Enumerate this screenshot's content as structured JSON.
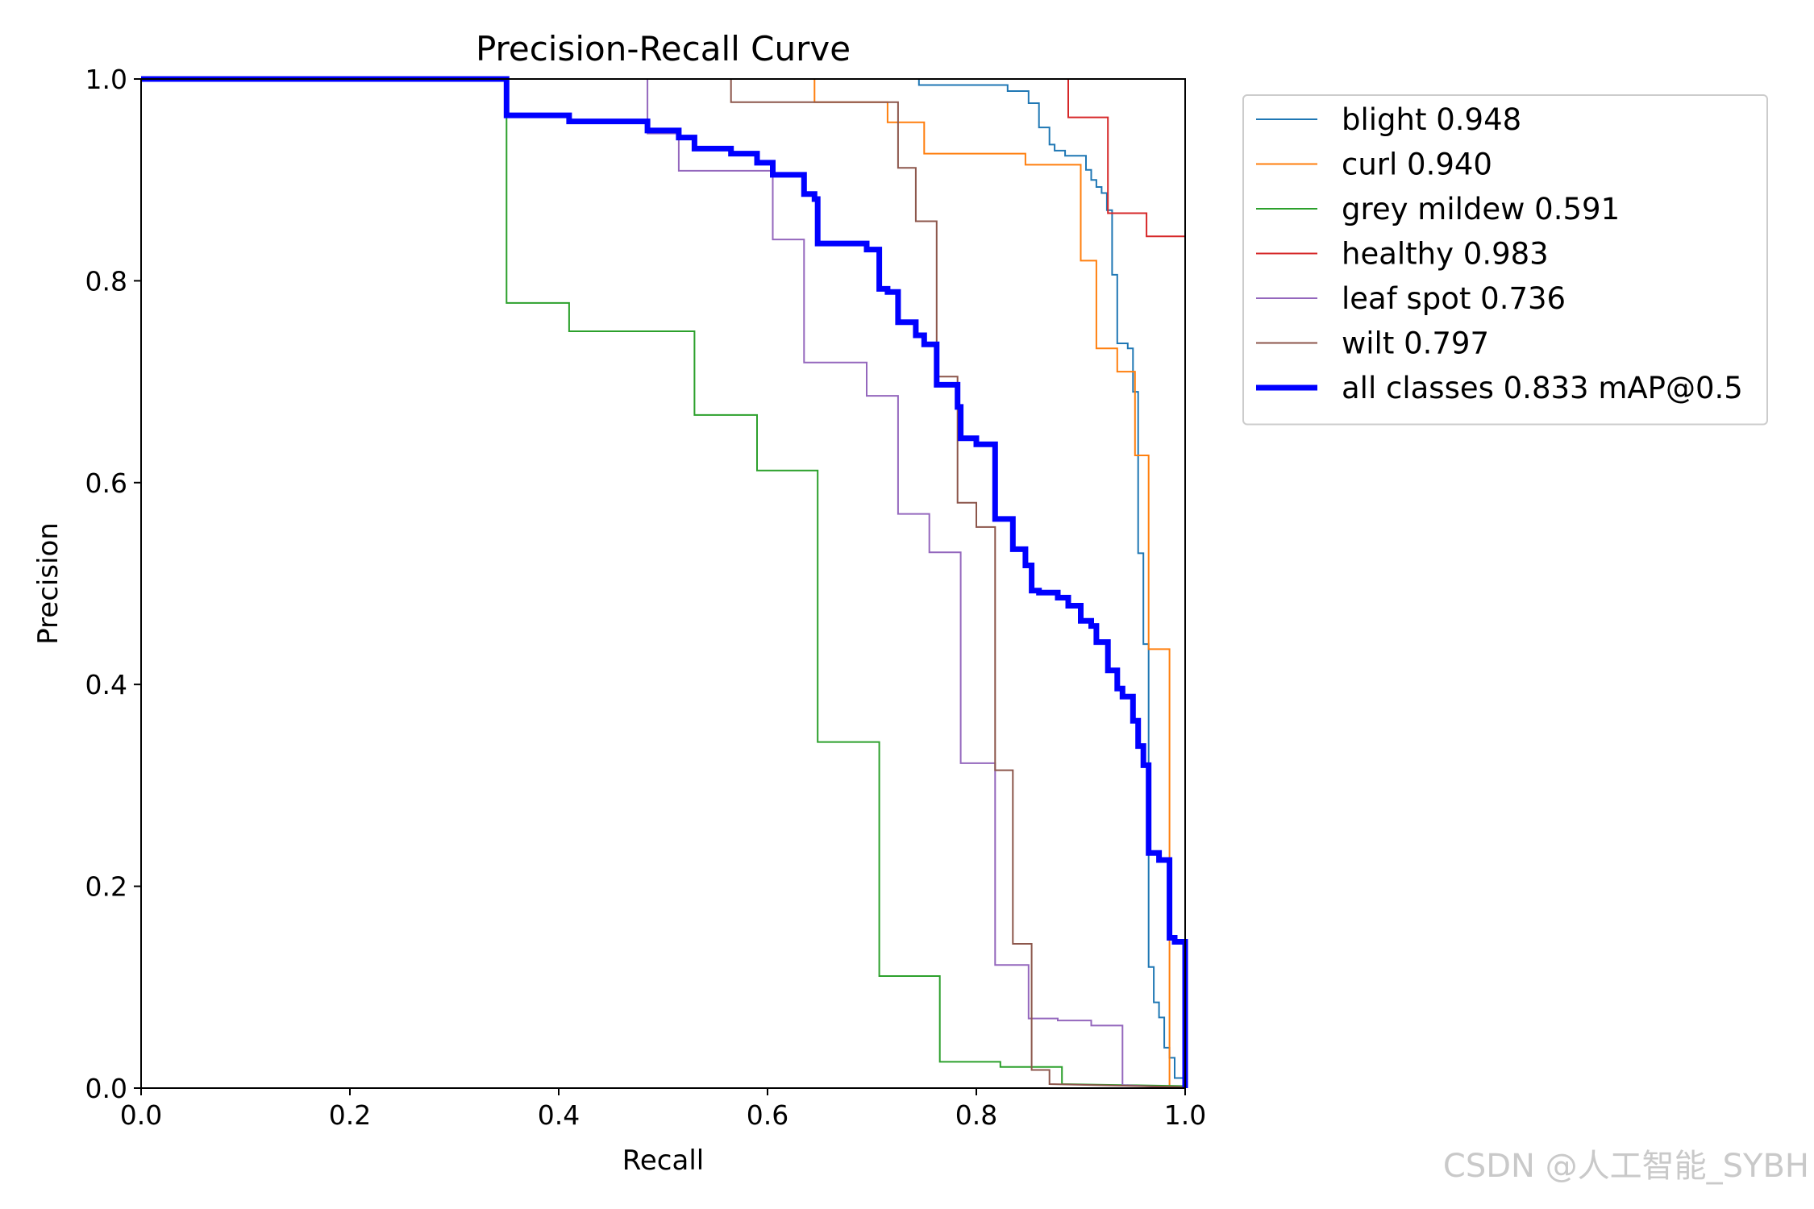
{
  "chart_data": {
    "type": "line",
    "title": "Precision-Recall Curve",
    "xlabel": "Recall",
    "ylabel": "Precision",
    "xlim": [
      0,
      1
    ],
    "ylim": [
      0,
      1
    ],
    "xticks": [
      "0.0",
      "0.2",
      "0.4",
      "0.6",
      "0.8",
      "1.0"
    ],
    "yticks": [
      "0.0",
      "0.2",
      "0.4",
      "0.6",
      "0.8",
      "1.0"
    ],
    "legend_position": "outside-right-top",
    "series": [
      {
        "name": "blight 0.948",
        "color": "#1f77b4",
        "width": 2,
        "points": [
          [
            0,
            1
          ],
          [
            0.745,
            1
          ],
          [
            0.745,
            0.994
          ],
          [
            0.83,
            0.994
          ],
          [
            0.83,
            0.988
          ],
          [
            0.85,
            0.988
          ],
          [
            0.85,
            0.976
          ],
          [
            0.86,
            0.976
          ],
          [
            0.86,
            0.952
          ],
          [
            0.87,
            0.952
          ],
          [
            0.87,
            0.935
          ],
          [
            0.875,
            0.935
          ],
          [
            0.875,
            0.929
          ],
          [
            0.885,
            0.929
          ],
          [
            0.885,
            0.924
          ],
          [
            0.905,
            0.924
          ],
          [
            0.905,
            0.91
          ],
          [
            0.91,
            0.91
          ],
          [
            0.91,
            0.9
          ],
          [
            0.915,
            0.9
          ],
          [
            0.915,
            0.893
          ],
          [
            0.92,
            0.893
          ],
          [
            0.92,
            0.887
          ],
          [
            0.925,
            0.887
          ],
          [
            0.925,
            0.87
          ],
          [
            0.93,
            0.87
          ],
          [
            0.93,
            0.806
          ],
          [
            0.935,
            0.806
          ],
          [
            0.935,
            0.738
          ],
          [
            0.945,
            0.738
          ],
          [
            0.945,
            0.733
          ],
          [
            0.95,
            0.733
          ],
          [
            0.95,
            0.69
          ],
          [
            0.955,
            0.69
          ],
          [
            0.955,
            0.53
          ],
          [
            0.96,
            0.53
          ],
          [
            0.96,
            0.44
          ],
          [
            0.965,
            0.44
          ],
          [
            0.965,
            0.12
          ],
          [
            0.97,
            0.12
          ],
          [
            0.97,
            0.085
          ],
          [
            0.975,
            0.085
          ],
          [
            0.975,
            0.07
          ],
          [
            0.98,
            0.07
          ],
          [
            0.98,
            0.04
          ],
          [
            0.985,
            0.04
          ],
          [
            0.985,
            0.03
          ],
          [
            0.99,
            0.03
          ],
          [
            0.99,
            0.01
          ],
          [
            1,
            0.01
          ],
          [
            1,
            0
          ]
        ]
      },
      {
        "name": "curl 0.940",
        "color": "#ff7f0e",
        "width": 2,
        "points": [
          [
            0,
            1
          ],
          [
            0.645,
            1
          ],
          [
            0.645,
            0.977
          ],
          [
            0.715,
            0.977
          ],
          [
            0.715,
            0.957
          ],
          [
            0.75,
            0.957
          ],
          [
            0.75,
            0.926
          ],
          [
            0.847,
            0.926
          ],
          [
            0.847,
            0.915
          ],
          [
            0.9,
            0.915
          ],
          [
            0.9,
            0.82
          ],
          [
            0.915,
            0.82
          ],
          [
            0.915,
            0.733
          ],
          [
            0.935,
            0.733
          ],
          [
            0.935,
            0.71
          ],
          [
            0.952,
            0.71
          ],
          [
            0.952,
            0.627
          ],
          [
            0.965,
            0.627
          ],
          [
            0.965,
            0.435
          ],
          [
            0.985,
            0.435
          ],
          [
            0.985,
            0
          ],
          [
            1,
            0
          ]
        ]
      },
      {
        "name": "grey mildew 0.591",
        "color": "#2ca02c",
        "width": 2,
        "points": [
          [
            0,
            1
          ],
          [
            0.35,
            1
          ],
          [
            0.35,
            0.778
          ],
          [
            0.41,
            0.778
          ],
          [
            0.41,
            0.75
          ],
          [
            0.53,
            0.75
          ],
          [
            0.53,
            0.667
          ],
          [
            0.59,
            0.667
          ],
          [
            0.59,
            0.612
          ],
          [
            0.648,
            0.612
          ],
          [
            0.648,
            0.343
          ],
          [
            0.707,
            0.343
          ],
          [
            0.707,
            0.111
          ],
          [
            0.765,
            0.111
          ],
          [
            0.765,
            0.026
          ],
          [
            0.823,
            0.026
          ],
          [
            0.823,
            0.021
          ],
          [
            0.882,
            0.021
          ],
          [
            0.882,
            0.004
          ],
          [
            1,
            0.002
          ],
          [
            1,
            0
          ]
        ]
      },
      {
        "name": "healthy 0.983",
        "color": "#d62728",
        "width": 2,
        "points": [
          [
            0,
            1
          ],
          [
            0.888,
            1
          ],
          [
            0.888,
            0.962
          ],
          [
            0.926,
            0.962
          ],
          [
            0.926,
            0.867
          ],
          [
            0.963,
            0.867
          ],
          [
            0.963,
            0.844
          ],
          [
            1,
            0.844
          ],
          [
            1,
            0
          ]
        ]
      },
      {
        "name": "leaf spot 0.736",
        "color": "#9467bd",
        "width": 2,
        "points": [
          [
            0,
            1
          ],
          [
            0.485,
            1
          ],
          [
            0.485,
            0.946
          ],
          [
            0.515,
            0.946
          ],
          [
            0.515,
            0.909
          ],
          [
            0.605,
            0.909
          ],
          [
            0.605,
            0.841
          ],
          [
            0.635,
            0.841
          ],
          [
            0.635,
            0.719
          ],
          [
            0.695,
            0.719
          ],
          [
            0.695,
            0.686
          ],
          [
            0.725,
            0.686
          ],
          [
            0.725,
            0.569
          ],
          [
            0.755,
            0.569
          ],
          [
            0.755,
            0.531
          ],
          [
            0.785,
            0.531
          ],
          [
            0.785,
            0.322
          ],
          [
            0.818,
            0.322
          ],
          [
            0.818,
            0.122
          ],
          [
            0.85,
            0.122
          ],
          [
            0.85,
            0.069
          ],
          [
            0.878,
            0.069
          ],
          [
            0.878,
            0.067
          ],
          [
            0.91,
            0.067
          ],
          [
            0.91,
            0.062
          ],
          [
            0.94,
            0.062
          ],
          [
            0.94,
            0.003
          ],
          [
            1,
            0
          ],
          [
            1,
            0
          ]
        ]
      },
      {
        "name": "wilt 0.797",
        "color": "#8c564b",
        "width": 2,
        "points": [
          [
            0,
            1
          ],
          [
            0.565,
            1
          ],
          [
            0.565,
            0.977
          ],
          [
            0.725,
            0.977
          ],
          [
            0.725,
            0.912
          ],
          [
            0.742,
            0.912
          ],
          [
            0.742,
            0.859
          ],
          [
            0.762,
            0.859
          ],
          [
            0.762,
            0.705
          ],
          [
            0.782,
            0.705
          ],
          [
            0.782,
            0.58
          ],
          [
            0.8,
            0.58
          ],
          [
            0.8,
            0.556
          ],
          [
            0.818,
            0.556
          ],
          [
            0.818,
            0.315
          ],
          [
            0.835,
            0.315
          ],
          [
            0.835,
            0.143
          ],
          [
            0.853,
            0.143
          ],
          [
            0.853,
            0.018
          ],
          [
            0.87,
            0.018
          ],
          [
            0.87,
            0.004
          ],
          [
            1,
            0.001
          ],
          [
            1,
            0
          ]
        ]
      },
      {
        "name": "all classes 0.833 mAP@0.5",
        "color": "#0000ff",
        "width": 7,
        "points": [
          [
            0,
            1
          ],
          [
            0.35,
            1
          ],
          [
            0.35,
            0.964
          ],
          [
            0.41,
            0.964
          ],
          [
            0.41,
            0.958
          ],
          [
            0.485,
            0.958
          ],
          [
            0.485,
            0.949
          ],
          [
            0.515,
            0.949
          ],
          [
            0.515,
            0.942
          ],
          [
            0.53,
            0.942
          ],
          [
            0.53,
            0.931
          ],
          [
            0.565,
            0.931
          ],
          [
            0.565,
            0.926
          ],
          [
            0.59,
            0.926
          ],
          [
            0.59,
            0.917
          ],
          [
            0.605,
            0.917
          ],
          [
            0.605,
            0.905
          ],
          [
            0.635,
            0.905
          ],
          [
            0.635,
            0.886
          ],
          [
            0.645,
            0.886
          ],
          [
            0.645,
            0.881
          ],
          [
            0.648,
            0.881
          ],
          [
            0.648,
            0.837
          ],
          [
            0.695,
            0.837
          ],
          [
            0.695,
            0.831
          ],
          [
            0.707,
            0.831
          ],
          [
            0.707,
            0.792
          ],
          [
            0.715,
            0.792
          ],
          [
            0.715,
            0.789
          ],
          [
            0.725,
            0.789
          ],
          [
            0.725,
            0.759
          ],
          [
            0.742,
            0.759
          ],
          [
            0.742,
            0.746
          ],
          [
            0.75,
            0.746
          ],
          [
            0.75,
            0.737
          ],
          [
            0.762,
            0.737
          ],
          [
            0.762,
            0.697
          ],
          [
            0.782,
            0.697
          ],
          [
            0.782,
            0.675
          ],
          [
            0.785,
            0.675
          ],
          [
            0.785,
            0.644
          ],
          [
            0.8,
            0.644
          ],
          [
            0.8,
            0.638
          ],
          [
            0.818,
            0.638
          ],
          [
            0.818,
            0.564
          ],
          [
            0.835,
            0.564
          ],
          [
            0.835,
            0.534
          ],
          [
            0.847,
            0.534
          ],
          [
            0.847,
            0.518
          ],
          [
            0.853,
            0.518
          ],
          [
            0.853,
            0.493
          ],
          [
            0.86,
            0.493
          ],
          [
            0.86,
            0.491
          ],
          [
            0.878,
            0.491
          ],
          [
            0.878,
            0.486
          ],
          [
            0.888,
            0.486
          ],
          [
            0.888,
            0.478
          ],
          [
            0.9,
            0.478
          ],
          [
            0.9,
            0.463
          ],
          [
            0.91,
            0.463
          ],
          [
            0.91,
            0.458
          ],
          [
            0.915,
            0.458
          ],
          [
            0.915,
            0.442
          ],
          [
            0.926,
            0.442
          ],
          [
            0.926,
            0.414
          ],
          [
            0.935,
            0.414
          ],
          [
            0.935,
            0.396
          ],
          [
            0.94,
            0.396
          ],
          [
            0.94,
            0.388
          ],
          [
            0.95,
            0.388
          ],
          [
            0.95,
            0.364
          ],
          [
            0.955,
            0.364
          ],
          [
            0.955,
            0.339
          ],
          [
            0.96,
            0.339
          ],
          [
            0.96,
            0.32
          ],
          [
            0.965,
            0.32
          ],
          [
            0.965,
            0.233
          ],
          [
            0.975,
            0.233
          ],
          [
            0.975,
            0.226
          ],
          [
            0.985,
            0.226
          ],
          [
            0.985,
            0.149
          ],
          [
            0.99,
            0.149
          ],
          [
            0.99,
            0.145
          ],
          [
            1,
            0.145
          ],
          [
            1,
            0
          ]
        ]
      }
    ]
  },
  "watermark": "CSDN @人工智能_SYBH"
}
